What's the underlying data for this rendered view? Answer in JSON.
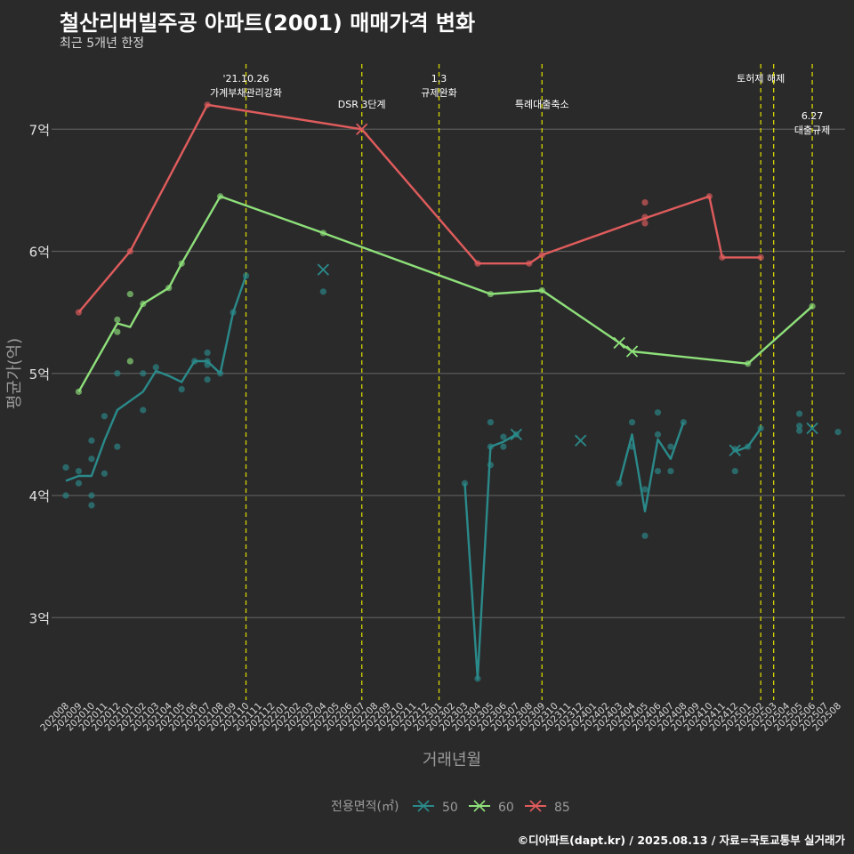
{
  "header": {
    "title": "철산리버빌주공 아파트(2001) 매매가격 변화",
    "subtitle": "최근 5개년 한정"
  },
  "footer": {
    "credit": "©디아파트(dapt.kr) / 2025.08.13 / 자료=국토교통부 실거래가"
  },
  "colors": {
    "background": "#2b2a2b",
    "grid": "#5a5a5a",
    "vline": "#d4d400",
    "50": "#2a8a8a",
    "60": "#8ee07a",
    "85": "#e05c5c"
  },
  "chart_data": {
    "type": "line",
    "xlabel": "거래년월",
    "ylabel": "평균가(억)",
    "ylim": [
      2.3,
      7.5
    ],
    "grid": true,
    "legend_position": "bottom",
    "legend_title": "전용면적(㎡)",
    "yticks": [
      {
        "value": 3,
        "label": "3억"
      },
      {
        "value": 4,
        "label": "4억"
      },
      {
        "value": 5,
        "label": "5억"
      },
      {
        "value": 6,
        "label": "6억"
      },
      {
        "value": 7,
        "label": "7억"
      }
    ],
    "months": [
      "202008",
      "202009",
      "202010",
      "202011",
      "202012",
      "202101",
      "202102",
      "202103",
      "202104",
      "202105",
      "202106",
      "202107",
      "202108",
      "202109",
      "202110",
      "202111",
      "202112",
      "202201",
      "202202",
      "202203",
      "202204",
      "202205",
      "202206",
      "202207",
      "202208",
      "202209",
      "202210",
      "202211",
      "202212",
      "202301",
      "202302",
      "202303",
      "202304",
      "202305",
      "202306",
      "202307",
      "202308",
      "202309",
      "202310",
      "202311",
      "202312",
      "202401",
      "202402",
      "202403",
      "202404",
      "202405",
      "202406",
      "202407",
      "202408",
      "202409",
      "202410",
      "202411",
      "202412",
      "202501",
      "202502",
      "202503",
      "202504",
      "202505",
      "202506",
      "202507",
      "202508"
    ],
    "annotations": [
      {
        "x": "202110",
        "lines": [
          "'21.10.26",
          "가계부채관리강화"
        ],
        "level": 0
      },
      {
        "x": "202207",
        "lines": [
          "DSR 3단계"
        ],
        "level": 1
      },
      {
        "x": "202301",
        "lines": [
          "1.3",
          "규제완화"
        ],
        "level": 0
      },
      {
        "x": "202309",
        "lines": [
          "특례대출축소"
        ],
        "level": 1
      },
      {
        "x": "202502",
        "lines": [
          "토허제 해제"
        ],
        "level": 0
      },
      {
        "x": "202503",
        "lines": [],
        "level": 0
      },
      {
        "x": "202506",
        "lines": [
          "6.27",
          "대출규제"
        ],
        "level": 2
      }
    ],
    "series": [
      {
        "name": "50",
        "line": [
          [
            "202008",
            4.12
          ],
          [
            "202009",
            4.16
          ],
          [
            "202010",
            4.16
          ],
          [
            "202011",
            4.45
          ],
          [
            "202012",
            4.7
          ],
          [
            "202102",
            4.85
          ],
          [
            "202103",
            5.02
          ],
          [
            "202104",
            4.98
          ],
          [
            "202105",
            4.93
          ],
          [
            "202106",
            5.1
          ],
          [
            "202107",
            5.1
          ],
          [
            "202108",
            5.0
          ],
          [
            "202109",
            5.5
          ],
          [
            "202110",
            5.8
          ],
          null,
          [
            "202303",
            4.1
          ],
          [
            "202304",
            2.5
          ],
          [
            "202305",
            4.4
          ],
          [
            "202306",
            4.44
          ],
          [
            "202307",
            4.5
          ],
          null,
          [
            "202403",
            4.1
          ],
          [
            "202404",
            4.5
          ],
          [
            "202405",
            3.87
          ],
          [
            "202406",
            4.46
          ],
          [
            "202407",
            4.3
          ],
          [
            "202408",
            4.6
          ],
          null,
          [
            "202412",
            4.36
          ],
          [
            "202501",
            4.4
          ],
          [
            "202502",
            4.55
          ]
        ],
        "points": [
          [
            "202008",
            4.23
          ],
          [
            "202008",
            4.0
          ],
          [
            "202009",
            4.2
          ],
          [
            "202009",
            4.1
          ],
          [
            "202010",
            4.45
          ],
          [
            "202010",
            4.3
          ],
          [
            "202010",
            4.0
          ],
          [
            "202010",
            3.92
          ],
          [
            "202011",
            4.65
          ],
          [
            "202011",
            4.18
          ],
          [
            "202012",
            5.0
          ],
          [
            "202012",
            4.4
          ],
          [
            "202102",
            5.0
          ],
          [
            "202102",
            4.7
          ],
          [
            "202103",
            5.05
          ],
          [
            "202105",
            4.87
          ],
          [
            "202106",
            5.1
          ],
          [
            "202107",
            5.17
          ],
          [
            "202107",
            5.1
          ],
          [
            "202107",
            5.07
          ],
          [
            "202107",
            4.95
          ],
          [
            "202108",
            5.0
          ],
          [
            "202109",
            5.5
          ],
          [
            "202110",
            5.8
          ],
          [
            "202204",
            5.67
          ],
          [
            "202303",
            4.1
          ],
          [
            "202304",
            2.5
          ],
          [
            "202305",
            4.6
          ],
          [
            "202305",
            4.4
          ],
          [
            "202305",
            4.25
          ],
          [
            "202306",
            4.48
          ],
          [
            "202306",
            4.4
          ],
          [
            "202307",
            4.5
          ],
          [
            "202403",
            4.1
          ],
          [
            "202404",
            4.6
          ],
          [
            "202404",
            4.4
          ],
          [
            "202405",
            4.05
          ],
          [
            "202405",
            3.67
          ],
          [
            "202406",
            4.68
          ],
          [
            "202406",
            4.5
          ],
          [
            "202406",
            4.2
          ],
          [
            "202407",
            4.4
          ],
          [
            "202407",
            4.2
          ],
          [
            "202408",
            4.6
          ],
          [
            "202412",
            4.38
          ],
          [
            "202412",
            4.2
          ],
          [
            "202501",
            4.4
          ],
          [
            "202502",
            4.55
          ],
          [
            "202505",
            4.67
          ],
          [
            "202505",
            4.57
          ],
          [
            "202505",
            4.53
          ],
          [
            "202508",
            4.52
          ]
        ],
        "crosses": [
          [
            "202204",
            5.85
          ],
          [
            "202307",
            4.5
          ],
          [
            "202312",
            4.45
          ],
          [
            "202412",
            4.37
          ],
          [
            "202506",
            4.55
          ]
        ]
      },
      {
        "name": "60",
        "line": [
          [
            "202009",
            4.85
          ],
          [
            "202012",
            5.41
          ],
          [
            "202101",
            5.38
          ],
          [
            "202102",
            5.57
          ],
          [
            "202104",
            5.7
          ],
          [
            "202105",
            5.9
          ],
          [
            "202108",
            6.45
          ],
          [
            "202204",
            6.15
          ],
          [
            "202305",
            5.65
          ],
          [
            "202309",
            5.68
          ],
          [
            "202404",
            5.18
          ],
          [
            "202501",
            5.08
          ],
          [
            "202506",
            5.55
          ]
        ],
        "points": [
          [
            "202009",
            4.85
          ],
          [
            "202012",
            5.44
          ],
          [
            "202012",
            5.34
          ],
          [
            "202101",
            5.65
          ],
          [
            "202101",
            5.1
          ],
          [
            "202102",
            5.57
          ],
          [
            "202104",
            5.7
          ],
          [
            "202105",
            5.9
          ],
          [
            "202108",
            6.45
          ],
          [
            "202204",
            6.15
          ],
          [
            "202305",
            5.65
          ],
          [
            "202309",
            5.68
          ],
          [
            "202501",
            5.08
          ],
          [
            "202506",
            5.55
          ]
        ],
        "crosses": [
          [
            "202403",
            5.25
          ],
          [
            "202404",
            5.18
          ]
        ]
      },
      {
        "name": "85",
        "line": [
          [
            "202009",
            5.5
          ],
          [
            "202101",
            6.0
          ],
          [
            "202107",
            7.2
          ],
          [
            "202207",
            7.0
          ],
          [
            "202304",
            5.9
          ],
          [
            "202308",
            5.9
          ],
          [
            "202309",
            5.97
          ],
          [
            "202405",
            6.27
          ],
          [
            "202410",
            6.45
          ],
          [
            "202411",
            5.95
          ],
          [
            "202502",
            5.95
          ]
        ],
        "points": [
          [
            "202009",
            5.5
          ],
          [
            "202101",
            6.0
          ],
          [
            "202107",
            7.2
          ],
          [
            "202304",
            5.9
          ],
          [
            "202308",
            5.9
          ],
          [
            "202309",
            5.97
          ],
          [
            "202405",
            6.4
          ],
          [
            "202405",
            6.28
          ],
          [
            "202405",
            6.23
          ],
          [
            "202410",
            6.45
          ],
          [
            "202411",
            5.95
          ],
          [
            "202502",
            5.95
          ]
        ],
        "crosses": [
          [
            "202207",
            7.0
          ]
        ]
      }
    ]
  }
}
